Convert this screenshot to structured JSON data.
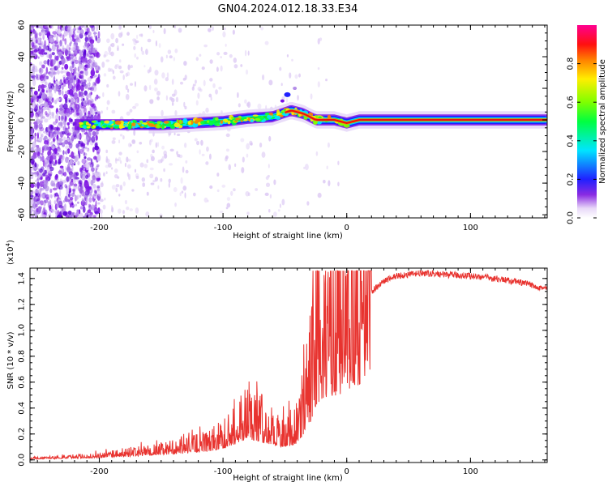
{
  "title": "GN04.2024.012.18.33.E34",
  "colors": {
    "snr_line": "#e8332f",
    "spectrogram_background": "#ffffff",
    "axis": "#000000"
  },
  "chart_data": [
    {
      "type": "heatmap",
      "xlabel": "Height of straight line (km)",
      "ylabel": "Frequency (Hz)",
      "xlim": [
        -256,
        162
      ],
      "ylim": [
        -62,
        60
      ],
      "xticks": [
        -200,
        -100,
        0,
        100
      ],
      "yticks": [
        -60,
        -40,
        -20,
        0,
        20,
        40,
        60
      ],
      "colorbar": {
        "label": "Normalized spectral amplitude",
        "range": [
          0,
          1
        ],
        "ticks": [
          "0.0",
          "0.2",
          "0.4",
          "0.6",
          "0.8"
        ]
      },
      "ridge_points": [
        {
          "x": -250,
          "y": -3
        },
        {
          "x": -200,
          "y": -3
        },
        {
          "x": -150,
          "y": -3
        },
        {
          "x": -100,
          "y": -1
        },
        {
          "x": -80,
          "y": 1
        },
        {
          "x": -60,
          "y": 2
        },
        {
          "x": -45,
          "y": 6
        },
        {
          "x": -35,
          "y": 4
        },
        {
          "x": -25,
          "y": 0
        },
        {
          "x": -10,
          "y": 0
        },
        {
          "x": 0,
          "y": -2
        },
        {
          "x": 10,
          "y": 0
        },
        {
          "x": 160,
          "y": 0
        }
      ]
    },
    {
      "type": "line",
      "xlabel": "Height of straight line (km)",
      "ylabel": "SNR (10 * v/v)",
      "yscale_label": "(x10",
      "yscale_exp": "4",
      "yscale_close": ")",
      "xlim": [
        -256,
        162
      ],
      "ylim": [
        -0.02,
        1.48
      ],
      "xticks": [
        -200,
        -100,
        0,
        100
      ],
      "yticks": [
        "0.0",
        "0.2",
        "0.4",
        "0.6",
        "0.8",
        "1.0",
        "1.2",
        "1.4"
      ],
      "series": [
        {
          "x": [
            -256,
            -200,
            -160,
            -130,
            -110,
            -100,
            -90,
            -80,
            -70,
            -60,
            -50,
            -40,
            -30,
            -25,
            -20,
            -10,
            0,
            10,
            20,
            30,
            40,
            50,
            60,
            80,
            100,
            120,
            140,
            162
          ],
          "y": [
            0.01,
            0.03,
            0.06,
            0.09,
            0.12,
            0.16,
            0.22,
            0.3,
            0.25,
            0.2,
            0.18,
            0.22,
            0.5,
            0.75,
            0.85,
            0.9,
            0.95,
            1.05,
            1.3,
            1.38,
            1.42,
            1.43,
            1.44,
            1.43,
            1.42,
            1.4,
            1.37,
            1.32
          ]
        }
      ]
    }
  ]
}
